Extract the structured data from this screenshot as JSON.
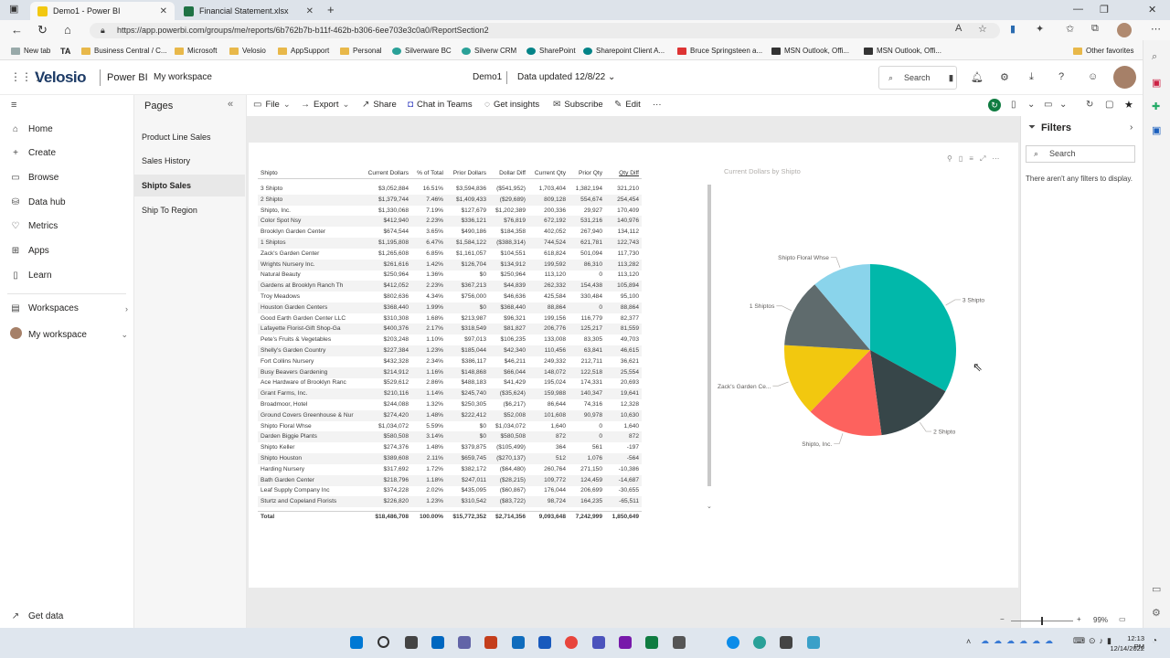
{
  "browser": {
    "tabs": [
      {
        "label": "Demo1 - Power BI",
        "active": true
      },
      {
        "label": "Financial Statement.xlsx",
        "active": false
      }
    ],
    "new_tab": "+",
    "url": "https://app.powerbi.com/groups/me/reports/6b762b7b-b11f-462b-b306-6ee703e3c0a0/ReportSection2",
    "bookmarks": [
      "New tab",
      "Business Central / C...",
      "Microsoft",
      "Velosio",
      "AppSupport",
      "Personal",
      "Silverware BC",
      "Silverw CRM",
      "SharePoint",
      "Sharepoint Client A...",
      "Bruce Springsteen a...",
      "MSN Outlook, Offi...",
      "MSN Outlook, Offi..."
    ],
    "other_favorites": "Other favorites"
  },
  "header": {
    "logo": "Velosio",
    "product": "Power BI",
    "workspace": "My workspace",
    "report_name": "Demo1",
    "data_updated": "Data updated 12/8/22",
    "search_placeholder": "Search"
  },
  "leftnav": {
    "items": [
      "Home",
      "Create",
      "Browse",
      "Data hub",
      "Metrics",
      "Apps",
      "Learn",
      "Workspaces",
      "My workspace"
    ],
    "get_data": "Get data"
  },
  "pages": {
    "title": "Pages",
    "items": [
      {
        "label": "Product Line Sales",
        "selected": false
      },
      {
        "label": "Sales History",
        "selected": false
      },
      {
        "label": "Shipto Sales",
        "selected": true
      },
      {
        "label": "Ship To Region",
        "selected": false
      }
    ]
  },
  "toolbar": {
    "file": "File",
    "export": "Export",
    "share": "Share",
    "chat": "Chat in Teams",
    "insights": "Get insights",
    "subscribe": "Subscribe",
    "edit": "Edit",
    "more": "···"
  },
  "filters": {
    "title": "Filters",
    "search_placeholder": "Search",
    "empty": "There aren't any filters to display."
  },
  "table": {
    "headers": [
      "Shipto",
      "Current Dollars",
      "% of Total",
      "Prior Dollars",
      "Dollar Diff",
      "Current Qty",
      "Prior Qty",
      "Qty Diff"
    ],
    "rows": [
      [
        "3 Shipto",
        "$3,052,884",
        "16.51%",
        "$3,594,836",
        "($541,952)",
        "1,703,404",
        "1,382,194",
        "321,210"
      ],
      [
        "2 Shipto",
        "$1,379,744",
        "7.46%",
        "$1,409,433",
        "($29,689)",
        "809,128",
        "554,674",
        "254,454"
      ],
      [
        "Shipto, Inc.",
        "$1,330,068",
        "7.19%",
        "$127,679",
        "$1,202,389",
        "200,336",
        "29,927",
        "170,409"
      ],
      [
        "Color Spot Nsy",
        "$412,940",
        "2.23%",
        "$336,121",
        "$76,819",
        "672,192",
        "531,216",
        "140,976"
      ],
      [
        "Brooklyn Garden Center",
        "$674,544",
        "3.65%",
        "$490,186",
        "$184,358",
        "402,052",
        "267,940",
        "134,112"
      ],
      [
        "1 Shiptos",
        "$1,195,808",
        "6.47%",
        "$1,584,122",
        "($388,314)",
        "744,524",
        "621,781",
        "122,743"
      ],
      [
        "Zack's Garden Center",
        "$1,265,608",
        "6.85%",
        "$1,161,057",
        "$104,551",
        "618,824",
        "501,094",
        "117,730"
      ],
      [
        "Wrights Nursery Inc.",
        "$261,616",
        "1.42%",
        "$126,704",
        "$134,912",
        "199,592",
        "86,310",
        "113,282"
      ],
      [
        "Natural Beauty",
        "$250,964",
        "1.36%",
        "$0",
        "$250,964",
        "113,120",
        "0",
        "113,120"
      ],
      [
        "Gardens at Brooklyn Ranch Th",
        "$412,052",
        "2.23%",
        "$367,213",
        "$44,839",
        "262,332",
        "154,438",
        "105,894"
      ],
      [
        "Troy Meadows",
        "$802,636",
        "4.34%",
        "$756,000",
        "$46,636",
        "425,584",
        "330,484",
        "95,100"
      ],
      [
        "Houston Garden Centers",
        "$368,440",
        "1.99%",
        "$0",
        "$368,440",
        "88,864",
        "0",
        "88,864"
      ],
      [
        "Good Earth Garden Center LLC",
        "$310,308",
        "1.68%",
        "$213,987",
        "$96,321",
        "199,156",
        "116,779",
        "82,377"
      ],
      [
        "Lafayette Florist-Gift Shop-Ga",
        "$400,376",
        "2.17%",
        "$318,549",
        "$81,827",
        "206,776",
        "125,217",
        "81,559"
      ],
      [
        "Pete's Fruits & Vegetables",
        "$203,248",
        "1.10%",
        "$97,013",
        "$106,235",
        "133,008",
        "83,305",
        "49,703"
      ],
      [
        "Shelly's Garden Country",
        "$227,384",
        "1.23%",
        "$185,044",
        "$42,340",
        "110,456",
        "63,841",
        "46,615"
      ],
      [
        "Fort Collins Nursery",
        "$432,328",
        "2.34%",
        "$386,117",
        "$46,211",
        "249,332",
        "212,711",
        "36,621"
      ],
      [
        "Busy Beavers Gardening",
        "$214,912",
        "1.16%",
        "$148,868",
        "$66,044",
        "148,072",
        "122,518",
        "25,554"
      ],
      [
        "Ace Hardware of Brooklyn Ranc",
        "$529,612",
        "2.86%",
        "$488,183",
        "$41,429",
        "195,024",
        "174,331",
        "20,693"
      ],
      [
        "Grant Farms, Inc.",
        "$210,116",
        "1.14%",
        "$245,740",
        "($35,624)",
        "159,988",
        "140,347",
        "19,641"
      ],
      [
        "Broadmoor, Hotel",
        "$244,088",
        "1.32%",
        "$250,305",
        "($6,217)",
        "86,644",
        "74,316",
        "12,328"
      ],
      [
        "Ground Covers Greenhouse & Nur",
        "$274,420",
        "1.48%",
        "$222,412",
        "$52,008",
        "101,608",
        "90,978",
        "10,630"
      ],
      [
        "Shipto Floral Whse",
        "$1,034,072",
        "5.59%",
        "$0",
        "$1,034,072",
        "1,640",
        "0",
        "1,640"
      ],
      [
        "Darden Biggie Plants",
        "$580,508",
        "3.14%",
        "$0",
        "$580,508",
        "872",
        "0",
        "872"
      ],
      [
        "Shipto Keller",
        "$274,376",
        "1.48%",
        "$379,875",
        "($105,499)",
        "364",
        "561",
        "-197"
      ],
      [
        "Shipto Houston",
        "$389,608",
        "2.11%",
        "$659,745",
        "($270,137)",
        "512",
        "1,076",
        "-564"
      ],
      [
        "Harding Nursery",
        "$317,692",
        "1.72%",
        "$382,172",
        "($64,480)",
        "260,764",
        "271,150",
        "-10,386"
      ],
      [
        "Bath Garden Center",
        "$218,796",
        "1.18%",
        "$247,011",
        "($28,215)",
        "109,772",
        "124,459",
        "-14,687"
      ],
      [
        "Leaf Supply Company Inc",
        "$374,228",
        "2.02%",
        "$435,095",
        "($60,867)",
        "176,044",
        "206,699",
        "-30,655"
      ],
      [
        "Sturtz and Copeland Florists",
        "$226,820",
        "1.23%",
        "$310,542",
        "($83,722)",
        "98,724",
        "164,235",
        "-65,511"
      ]
    ],
    "total": [
      "Total",
      "$18,486,708",
      "100.00%",
      "$15,772,352",
      "$2,714,356",
      "9,093,648",
      "7,242,999",
      "1,850,649"
    ]
  },
  "chart_data": {
    "type": "pie",
    "title": "Current Dollars by Shipto",
    "slices": [
      {
        "label": "3 Shipto",
        "value": 3052884,
        "color": "#01b8aa"
      },
      {
        "label": "2 Shipto",
        "value": 1379744,
        "color": "#374649"
      },
      {
        "label": "Shipto, Inc.",
        "value": 1330068,
        "color": "#fd625e"
      },
      {
        "label": "Zack's Garden Ce...",
        "value": 1265608,
        "color": "#f2c80f"
      },
      {
        "label": "1 Shiptos",
        "value": 1195808,
        "color": "#5f6b6d"
      },
      {
        "label": "Shipto Floral Whse",
        "value": 1034072,
        "color": "#8ad4eb"
      }
    ]
  },
  "zoom": "99%",
  "clock": {
    "time": "12:13 PM",
    "date": "12/14/2022"
  }
}
